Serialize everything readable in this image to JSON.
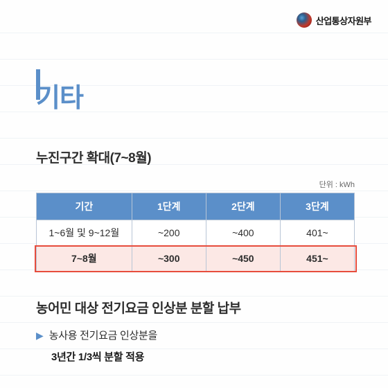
{
  "header": {
    "org_name": "산업통상자원부"
  },
  "main_title": "기타",
  "section1": {
    "title": "누진구간 확대(7~8월)",
    "unit": "단위 : kWh",
    "table": {
      "headers": [
        "기간",
        "1단계",
        "2단계",
        "3단계"
      ],
      "rows": [
        {
          "cells": [
            "1~6월 및 9~12월",
            "~200",
            "~400",
            "401~"
          ],
          "highlight": false
        },
        {
          "cells": [
            "7~8월",
            "~300",
            "~450",
            "451~"
          ],
          "highlight": true
        }
      ],
      "header_bg": "#5b8fc9",
      "header_fg": "#ffffff",
      "border_color": "#b8c5d6",
      "highlight_bg": "#fce8e5",
      "highlight_border": "#e74c3c"
    }
  },
  "section2": {
    "title": "농어민 대상 전기요금 인상분 분할 납부",
    "bullet_text": "농사용 전기요금 인상분을",
    "emphasis": "3년간 1/3씩 분할 적용"
  },
  "colors": {
    "accent": "#5b8fc9",
    "text": "#2d2d2d",
    "rule_line": "#e5ebf0"
  }
}
